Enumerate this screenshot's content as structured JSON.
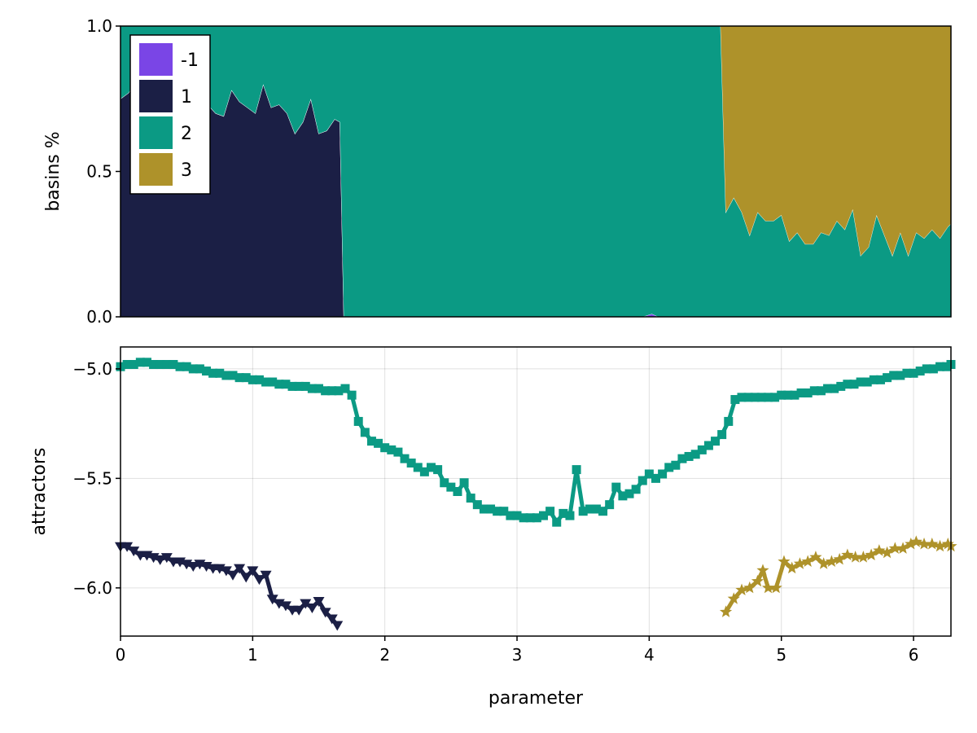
{
  "chart_data": [
    {
      "type": "area",
      "stacked": true,
      "xlabel": "",
      "ylabel": "basins %",
      "xlim": [
        0,
        6.283
      ],
      "ylim": [
        0,
        1
      ],
      "yticks": [
        0.0,
        0.5,
        1.0
      ],
      "ytick_labels": [
        "0.0",
        "0.5",
        "1.0"
      ],
      "grid": false,
      "legend": {
        "placement": "top-left",
        "entries": [
          {
            "label": "-1",
            "color": "#7a45e6"
          },
          {
            "label": "1",
            "color": "#1b1f45"
          },
          {
            "label": "2",
            "color": "#0b9a84"
          },
          {
            "label": "3",
            "color": "#ae922a"
          }
        ]
      },
      "x": [
        0,
        0.06,
        0.12,
        0.18,
        0.24,
        0.3,
        0.36,
        0.42,
        0.48,
        0.54,
        0.6,
        0.66,
        0.72,
        0.78,
        0.84,
        0.9,
        0.96,
        1.02,
        1.08,
        1.14,
        1.2,
        1.26,
        1.32,
        1.38,
        1.44,
        1.5,
        1.56,
        1.62,
        1.66,
        1.69,
        3.95,
        4.02,
        4.07,
        4.54,
        4.58,
        4.64,
        4.7,
        4.76,
        4.82,
        4.88,
        4.94,
        5.0,
        5.06,
        5.12,
        5.18,
        5.24,
        5.3,
        5.36,
        5.42,
        5.48,
        5.54,
        5.6,
        5.66,
        5.72,
        5.78,
        5.84,
        5.9,
        5.96,
        6.02,
        6.08,
        6.14,
        6.2,
        6.26,
        6.283
      ],
      "series": [
        {
          "name": "1",
          "values": [
            0.75,
            0.77,
            0.81,
            0.74,
            0.79,
            0.75,
            0.76,
            0.73,
            0.75,
            0.72,
            0.79,
            0.73,
            0.7,
            0.69,
            0.78,
            0.74,
            0.72,
            0.7,
            0.8,
            0.72,
            0.73,
            0.7,
            0.63,
            0.67,
            0.75,
            0.63,
            0.64,
            0.68,
            0.67,
            0.0,
            0.0,
            0.0,
            0.0,
            0.0,
            0.0,
            0.0,
            0.0,
            0.0,
            0.0,
            0.0,
            0.0,
            0.0,
            0.0,
            0.0,
            0.0,
            0.0,
            0.0,
            0.0,
            0.0,
            0.0,
            0.0,
            0.0,
            0.0,
            0.0,
            0.0,
            0.0,
            0.0,
            0.0,
            0.0,
            0.0,
            0.0,
            0.0,
            0.0,
            0.0
          ]
        },
        {
          "name": "-1",
          "values": [
            0,
            0,
            0,
            0,
            0,
            0,
            0,
            0,
            0,
            0,
            0,
            0,
            0,
            0,
            0,
            0,
            0,
            0,
            0,
            0,
            0,
            0,
            0,
            0,
            0,
            0,
            0,
            0,
            0,
            0,
            0.0,
            0.01,
            0.0,
            0,
            0,
            0,
            0,
            0,
            0,
            0,
            0,
            0,
            0,
            0,
            0,
            0,
            0,
            0,
            0,
            0,
            0,
            0,
            0,
            0,
            0,
            0,
            0,
            0,
            0,
            0,
            0,
            0,
            0,
            0
          ]
        },
        {
          "name": "2",
          "values": [
            0.25,
            0.23,
            0.19,
            0.26,
            0.21,
            0.25,
            0.24,
            0.27,
            0.25,
            0.28,
            0.21,
            0.27,
            0.3,
            0.31,
            0.22,
            0.26,
            0.28,
            0.3,
            0.2,
            0.28,
            0.27,
            0.3,
            0.37,
            0.33,
            0.25,
            0.37,
            0.36,
            0.32,
            0.33,
            1.0,
            1.0,
            0.99,
            1.0,
            1.0,
            0.36,
            0.41,
            0.36,
            0.28,
            0.36,
            0.33,
            0.33,
            0.35,
            0.26,
            0.29,
            0.25,
            0.25,
            0.29,
            0.28,
            0.33,
            0.3,
            0.37,
            0.21,
            0.24,
            0.35,
            0.28,
            0.21,
            0.29,
            0.21,
            0.29,
            0.27,
            0.3,
            0.27,
            0.31,
            0.32
          ]
        },
        {
          "name": "3",
          "values": [
            0,
            0,
            0,
            0,
            0,
            0,
            0,
            0,
            0,
            0,
            0,
            0,
            0,
            0,
            0,
            0,
            0,
            0,
            0,
            0,
            0,
            0,
            0,
            0,
            0,
            0,
            0,
            0,
            0,
            0,
            0,
            0,
            0,
            0,
            0.64,
            0.59,
            0.64,
            0.72,
            0.64,
            0.67,
            0.67,
            0.65,
            0.74,
            0.71,
            0.75,
            0.75,
            0.71,
            0.72,
            0.67,
            0.7,
            0.63,
            0.79,
            0.76,
            0.65,
            0.72,
            0.79,
            0.71,
            0.79,
            0.71,
            0.73,
            0.7,
            0.73,
            0.69,
            0.68
          ]
        }
      ]
    },
    {
      "type": "line",
      "markers": true,
      "xlabel": "parameter",
      "ylabel": "attractors",
      "xlim": [
        0,
        6.283
      ],
      "ylim": [
        -6.22,
        -4.9
      ],
      "xticks": [
        0,
        1,
        2,
        3,
        4,
        5,
        6
      ],
      "xtick_labels": [
        "0",
        "1",
        "2",
        "3",
        "4",
        "5",
        "6"
      ],
      "yticks": [
        -5.0,
        -5.5,
        -6.0
      ],
      "ytick_labels": [
        "−5.0",
        "−5.5",
        "−6.0"
      ],
      "grid": true,
      "series": [
        {
          "name": "1",
          "color": "#1b1f45",
          "marker": "triangle-down",
          "x": [
            0,
            0.05,
            0.1,
            0.15,
            0.2,
            0.25,
            0.3,
            0.35,
            0.4,
            0.45,
            0.5,
            0.55,
            0.6,
            0.65,
            0.7,
            0.75,
            0.8,
            0.85,
            0.9,
            0.95,
            1.0,
            1.05,
            1.1,
            1.15,
            1.2,
            1.25,
            1.3,
            1.35,
            1.4,
            1.45,
            1.5,
            1.55,
            1.6,
            1.64
          ],
          "y": [
            -5.81,
            -5.81,
            -5.83,
            -5.85,
            -5.85,
            -5.86,
            -5.87,
            -5.86,
            -5.88,
            -5.88,
            -5.89,
            -5.9,
            -5.89,
            -5.9,
            -5.91,
            -5.91,
            -5.92,
            -5.94,
            -5.91,
            -5.95,
            -5.92,
            -5.96,
            -5.94,
            -6.05,
            -6.07,
            -6.08,
            -6.1,
            -6.1,
            -6.07,
            -6.09,
            -6.06,
            -6.11,
            -6.14,
            -6.17
          ]
        },
        {
          "name": "2",
          "color": "#0b9a84",
          "marker": "square",
          "x": [
            0,
            0.05,
            0.1,
            0.15,
            0.2,
            0.25,
            0.3,
            0.35,
            0.4,
            0.45,
            0.5,
            0.55,
            0.6,
            0.65,
            0.7,
            0.75,
            0.8,
            0.85,
            0.9,
            0.95,
            1.0,
            1.05,
            1.1,
            1.15,
            1.2,
            1.25,
            1.3,
            1.35,
            1.4,
            1.45,
            1.5,
            1.55,
            1.6,
            1.65,
            1.7,
            1.75,
            1.8,
            1.85,
            1.9,
            1.95,
            2.0,
            2.05,
            2.1,
            2.15,
            2.2,
            2.25,
            2.3,
            2.35,
            2.4,
            2.45,
            2.5,
            2.55,
            2.6,
            2.65,
            2.7,
            2.75,
            2.8,
            2.85,
            2.9,
            2.95,
            3.0,
            3.05,
            3.1,
            3.15,
            3.2,
            3.25,
            3.3,
            3.35,
            3.4,
            3.45,
            3.5,
            3.55,
            3.6,
            3.65,
            3.7,
            3.75,
            3.8,
            3.85,
            3.9,
            3.95,
            4.0,
            4.05,
            4.1,
            4.15,
            4.2,
            4.25,
            4.3,
            4.35,
            4.4,
            4.45,
            4.5,
            4.55,
            4.6,
            4.65,
            4.7,
            4.75,
            4.8,
            4.85,
            4.9,
            4.95,
            5.0,
            5.05,
            5.1,
            5.15,
            5.2,
            5.25,
            5.3,
            5.35,
            5.4,
            5.45,
            5.5,
            5.55,
            5.6,
            5.65,
            5.7,
            5.75,
            5.8,
            5.85,
            5.9,
            5.95,
            6.0,
            6.05,
            6.1,
            6.15,
            6.2,
            6.25,
            6.283
          ],
          "y": [
            -4.99,
            -4.98,
            -4.98,
            -4.97,
            -4.97,
            -4.98,
            -4.98,
            -4.98,
            -4.98,
            -4.99,
            -4.99,
            -5.0,
            -5.0,
            -5.01,
            -5.02,
            -5.02,
            -5.03,
            -5.03,
            -5.04,
            -5.04,
            -5.05,
            -5.05,
            -5.06,
            -5.06,
            -5.07,
            -5.07,
            -5.08,
            -5.08,
            -5.08,
            -5.09,
            -5.09,
            -5.1,
            -5.1,
            -5.1,
            -5.09,
            -5.12,
            -5.24,
            -5.29,
            -5.33,
            -5.34,
            -5.36,
            -5.37,
            -5.38,
            -5.41,
            -5.43,
            -5.45,
            -5.47,
            -5.45,
            -5.46,
            -5.52,
            -5.54,
            -5.56,
            -5.52,
            -5.59,
            -5.62,
            -5.64,
            -5.64,
            -5.65,
            -5.65,
            -5.67,
            -5.67,
            -5.68,
            -5.68,
            -5.68,
            -5.67,
            -5.65,
            -5.7,
            -5.66,
            -5.67,
            -5.46,
            -5.65,
            -5.64,
            -5.64,
            -5.65,
            -5.62,
            -5.54,
            -5.58,
            -5.57,
            -5.55,
            -5.51,
            -5.48,
            -5.5,
            -5.48,
            -5.45,
            -5.44,
            -5.41,
            -5.4,
            -5.39,
            -5.37,
            -5.35,
            -5.33,
            -5.3,
            -5.24,
            -5.14,
            -5.13,
            -5.13,
            -5.13,
            -5.13,
            -5.13,
            -5.13,
            -5.12,
            -5.12,
            -5.12,
            -5.11,
            -5.11,
            -5.1,
            -5.1,
            -5.09,
            -5.09,
            -5.08,
            -5.07,
            -5.07,
            -5.06,
            -5.06,
            -5.05,
            -5.05,
            -5.04,
            -5.03,
            -5.03,
            -5.02,
            -5.02,
            -5.01,
            -5.0,
            -5.0,
            -4.99,
            -4.99,
            -4.98
          ]
        },
        {
          "name": "3",
          "color": "#ae922a",
          "marker": "star",
          "x": [
            4.58,
            4.64,
            4.7,
            4.76,
            4.82,
            4.86,
            4.9,
            4.96,
            5.02,
            5.08,
            5.14,
            5.2,
            5.26,
            5.32,
            5.38,
            5.44,
            5.5,
            5.56,
            5.62,
            5.68,
            5.74,
            5.8,
            5.86,
            5.92,
            5.98,
            6.02,
            6.08,
            6.14,
            6.2,
            6.26,
            6.283
          ],
          "y": [
            -6.11,
            -6.05,
            -6.01,
            -6.0,
            -5.97,
            -5.92,
            -6.0,
            -6.0,
            -5.88,
            -5.91,
            -5.89,
            -5.88,
            -5.86,
            -5.89,
            -5.88,
            -5.87,
            -5.85,
            -5.86,
            -5.86,
            -5.85,
            -5.83,
            -5.84,
            -5.82,
            -5.82,
            -5.8,
            -5.79,
            -5.8,
            -5.8,
            -5.81,
            -5.8,
            -5.81
          ]
        }
      ]
    }
  ]
}
